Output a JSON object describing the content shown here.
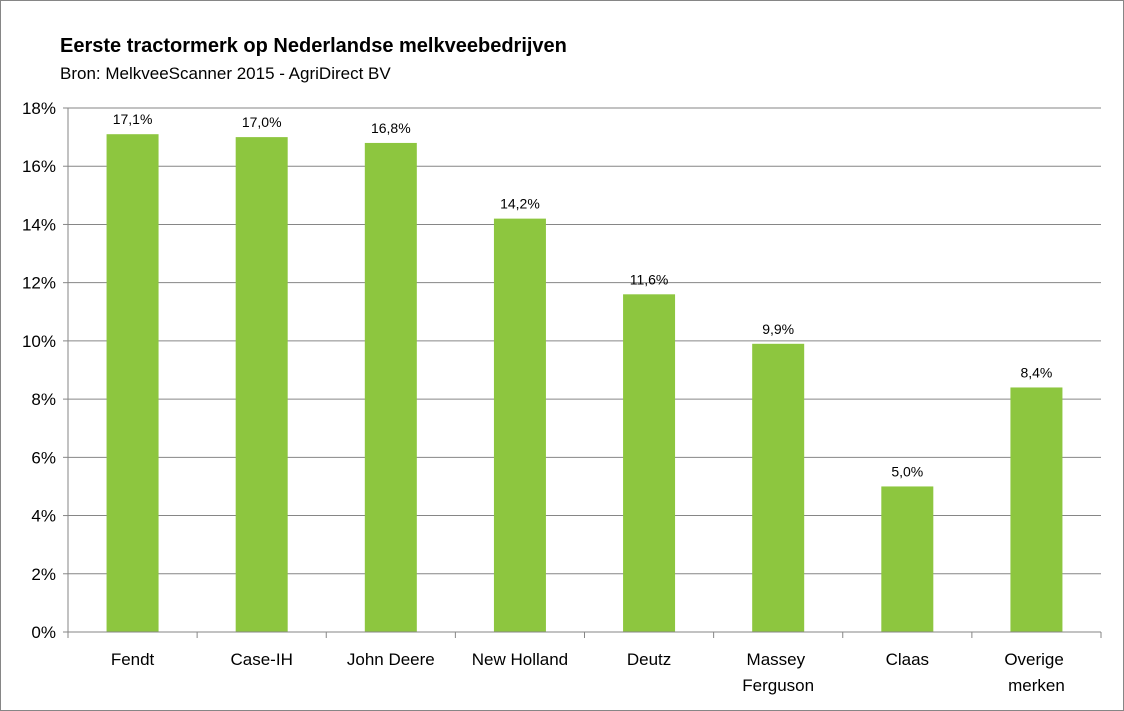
{
  "chart_data": {
    "type": "bar",
    "title": "Eerste tractormerk op Nederlandse melkveebedrijven",
    "subtitle": "Bron: MelkveeScanner 2015 - AgriDirect BV",
    "categories": [
      "Fendt",
      "Case-IH",
      "John Deere",
      "New Holland",
      "Deutz",
      "Massey Ferguson",
      "Claas",
      "Overige merken"
    ],
    "values": [
      17.1,
      17.0,
      16.8,
      14.2,
      11.6,
      9.9,
      5.0,
      8.4
    ],
    "value_labels": [
      "17,1%",
      "17,0%",
      "16,8%",
      "14,2%",
      "11,6%",
      "9,9%",
      "5,0%",
      "8,4%"
    ],
    "color": "#8dc63f",
    "ylim": [
      0,
      18
    ],
    "yticks": [
      {
        "value": 0,
        "label": "0%"
      },
      {
        "value": 2,
        "label": "2%"
      },
      {
        "value": 4,
        "label": "4%"
      },
      {
        "value": 6,
        "label": "6%"
      },
      {
        "value": 8,
        "label": "8%"
      },
      {
        "value": 10,
        "label": "10%"
      },
      {
        "value": 12,
        "label": "12%"
      },
      {
        "value": 14,
        "label": "14%"
      },
      {
        "value": 16,
        "label": "16%"
      },
      {
        "value": 18,
        "label": "18%"
      }
    ],
    "grid": true
  }
}
